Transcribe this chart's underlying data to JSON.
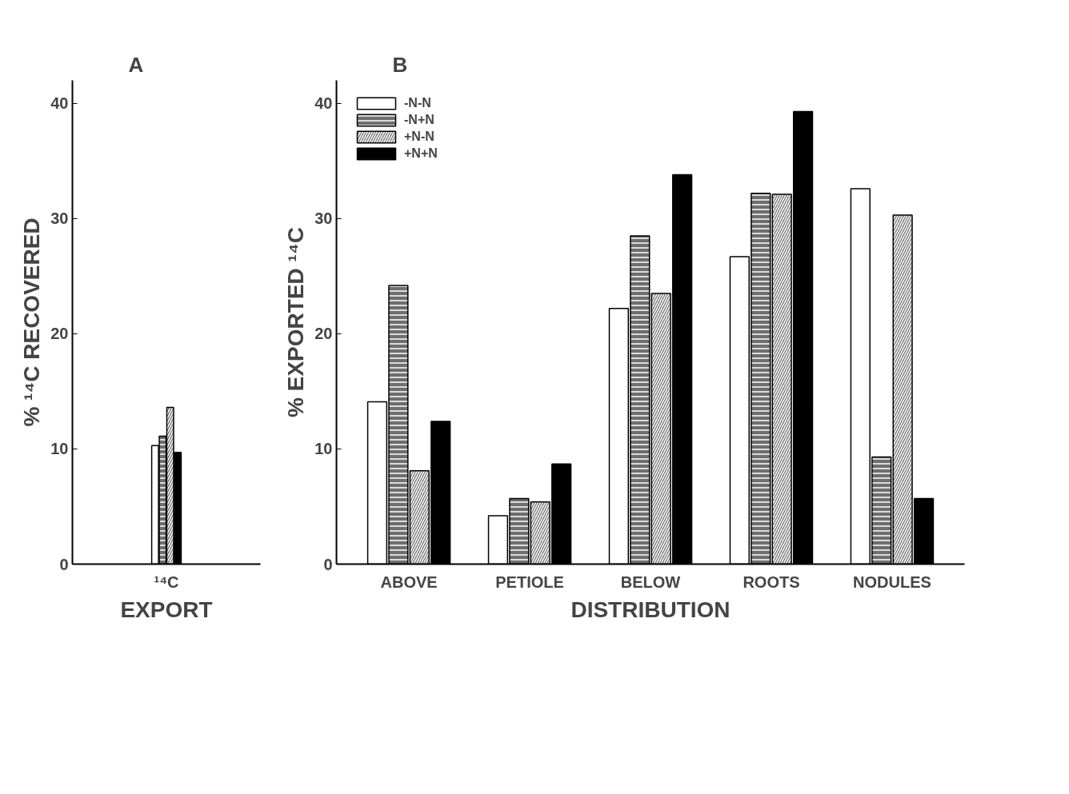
{
  "chart_data": [
    {
      "type": "bar",
      "title": "A",
      "categories": [
        "¹⁴C"
      ],
      "xlabel": "EXPORT",
      "ylabel": "% ¹⁴C RECOVERED",
      "ylim": [
        0,
        42
      ],
      "yticks": [
        0,
        10,
        20,
        30,
        40
      ],
      "grid": false,
      "legend": false,
      "series": [
        {
          "color": "#ffffff",
          "values": [
            10.3
          ]
        },
        {
          "color": "#6e6e6e",
          "values": [
            11.1
          ]
        },
        {
          "color": "#6e6e6e",
          "values": [
            13.6
          ]
        },
        {
          "color": "#000000",
          "values": [
            9.7
          ]
        }
      ]
    },
    {
      "type": "bar",
      "title": "B",
      "categories": [
        "ABOVE",
        "PETIOLE",
        "BELOW",
        "ROOTS",
        "NODULES"
      ],
      "xlabel": "DISTRIBUTION",
      "ylabel": "% EXPORTED ¹⁴C",
      "ylim": [
        0,
        42
      ],
      "yticks": [
        0,
        10,
        20,
        30,
        40
      ],
      "grid": false,
      "legend": "top left",
      "series": [
        {
          "name": "-N-N",
          "color": "#ffffff",
          "values": [
            14.1,
            4.2,
            22.2,
            26.7,
            32.6
          ]
        },
        {
          "name": "-N+N",
          "color": "#6e6e6e",
          "values": [
            24.2,
            5.7,
            28.5,
            32.2,
            9.3
          ]
        },
        {
          "name": "+N-N",
          "color": "#6e6e6e",
          "values": [
            8.1,
            5.4,
            23.5,
            32.1,
            30.3
          ]
        },
        {
          "name": "+N+N",
          "color": "#000000",
          "values": [
            12.4,
            8.7,
            33.8,
            39.3,
            5.7
          ]
        }
      ]
    }
  ]
}
